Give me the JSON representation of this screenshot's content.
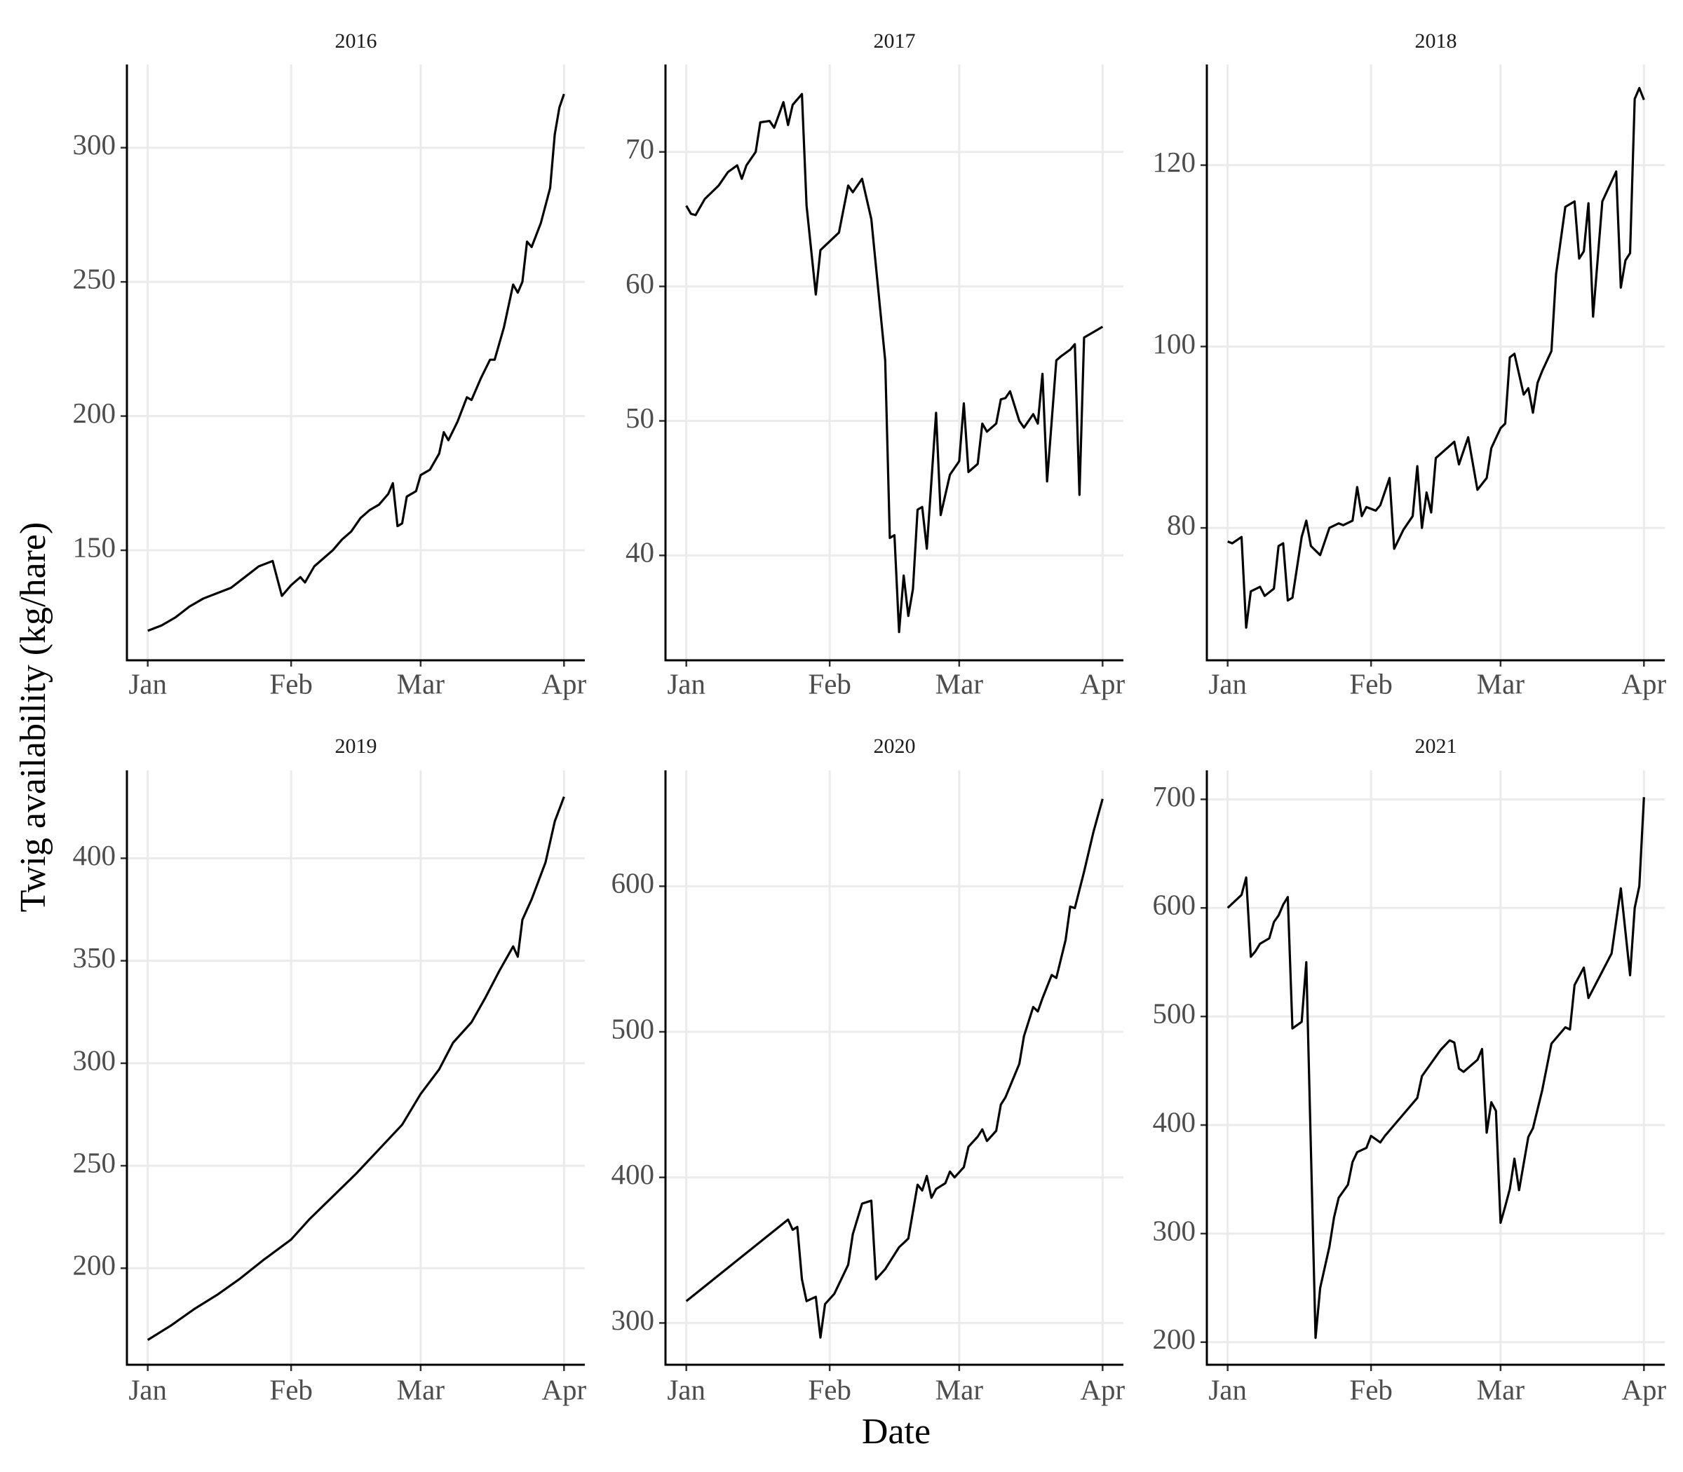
{
  "y_label": "Twig availability (kg/hare)",
  "x_label": "Date",
  "chart_data": [
    {
      "type": "line",
      "title": "2016",
      "x": [
        0,
        3,
        6,
        9,
        12,
        15,
        18,
        21,
        24,
        27,
        29,
        31,
        33,
        34,
        36,
        38,
        40,
        42,
        44,
        46,
        48,
        50,
        52,
        53,
        54,
        55,
        56,
        58,
        59,
        61,
        63,
        64,
        65,
        67,
        69,
        70,
        72,
        74,
        75,
        77,
        79,
        80,
        81,
        82,
        83,
        85,
        87,
        88,
        89,
        90
      ],
      "series": [
        {
          "color": "#000000",
          "values": [
            120,
            122,
            125,
            129,
            132,
            134,
            136,
            140,
            144,
            146,
            133,
            137,
            140,
            138,
            144,
            147,
            150,
            154,
            157,
            162,
            165,
            167,
            171,
            175,
            159,
            160,
            170,
            172,
            178,
            180,
            186,
            194,
            191,
            198,
            207,
            206,
            214,
            221,
            221,
            233,
            249,
            246,
            250,
            265,
            263,
            272,
            285,
            305,
            315,
            320
          ]
        }
      ],
      "xlim": [
        -4.5,
        94.5
      ],
      "xticks": [
        {
          "value": 0,
          "label": "Jan"
        },
        {
          "value": 31,
          "label": "Feb"
        },
        {
          "value": 59,
          "label": "Mar"
        },
        {
          "value": 90,
          "label": "Apr"
        }
      ],
      "ylim": [
        109,
        331
      ],
      "yticks": [
        150,
        200,
        250,
        300
      ],
      "grid": true
    },
    {
      "type": "line",
      "title": "2017",
      "x": [
        0,
        1,
        2,
        4,
        7,
        9,
        11,
        12,
        13,
        15,
        16,
        18,
        19,
        21,
        22,
        23,
        25,
        26,
        28,
        29,
        33,
        35,
        36,
        38,
        40,
        42,
        43,
        44,
        45,
        46,
        47,
        48,
        49,
        50,
        51,
        52,
        54,
        55,
        57,
        59,
        60,
        61,
        63,
        64,
        65,
        67,
        68,
        69,
        70,
        72,
        73,
        75,
        76,
        77,
        78,
        80,
        81,
        83,
        84,
        85,
        86,
        88,
        90
      ],
      "series": [
        {
          "color": "#000000",
          "values": [
            66,
            65.4,
            65.3,
            66.5,
            67.5,
            68.5,
            69,
            68,
            69,
            70,
            72.2,
            72.3,
            71.8,
            73.7,
            72,
            73.5,
            74.3,
            66,
            59.4,
            62.7,
            64,
            67.5,
            67,
            68,
            65,
            58,
            54.5,
            41.3,
            41.5,
            34.3,
            38.5,
            35.5,
            37.5,
            43.4,
            43.6,
            40.5,
            50.6,
            43,
            46,
            47,
            51.3,
            46.2,
            46.8,
            49.8,
            49.2,
            49.8,
            51.6,
            51.7,
            52.2,
            50,
            49.5,
            50.5,
            49.8,
            53.5,
            45.5,
            54.5,
            54.8,
            55.3,
            55.7,
            44.5,
            56.2,
            56.6,
            57
          ]
        }
      ],
      "xlim": [
        -4.5,
        94.5
      ],
      "xticks": [
        {
          "value": 0,
          "label": "Jan"
        },
        {
          "value": 31,
          "label": "Feb"
        },
        {
          "value": 59,
          "label": "Mar"
        },
        {
          "value": 90,
          "label": "Apr"
        }
      ],
      "ylim": [
        32.2,
        76.5
      ],
      "yticks": [
        40,
        50,
        60,
        70
      ],
      "grid": true
    },
    {
      "type": "line",
      "title": "2018",
      "x": [
        0,
        1,
        3,
        4,
        5,
        7,
        8,
        10,
        11,
        12,
        13,
        14,
        16,
        17,
        18,
        20,
        22,
        24,
        25,
        27,
        28,
        29,
        30,
        32,
        33,
        35,
        36,
        38,
        40,
        41,
        42,
        43,
        44,
        45,
        49,
        50,
        52,
        54,
        56,
        57,
        59,
        60,
        61,
        62,
        64,
        65,
        66,
        67,
        68,
        70,
        71,
        73,
        75,
        76,
        77,
        78,
        79,
        81,
        84,
        85,
        86,
        87,
        88,
        89,
        90
      ],
      "series": [
        {
          "color": "#000000",
          "values": [
            78.5,
            78.3,
            79,
            69,
            73,
            73.5,
            72.5,
            73.3,
            78,
            78.3,
            72,
            72.3,
            79,
            80.8,
            78,
            77,
            80,
            80.5,
            80.3,
            80.8,
            84.5,
            81.3,
            82.3,
            81.9,
            82.5,
            85.5,
            77.7,
            79.8,
            81.3,
            86.8,
            80,
            83.9,
            81.7,
            87.7,
            89.5,
            87,
            90,
            84.2,
            85.5,
            88.8,
            91,
            91.5,
            98.8,
            99.2,
            94.7,
            95.4,
            92.7,
            96,
            97.3,
            99.5,
            108,
            115.4,
            116,
            109.7,
            110.5,
            115.8,
            103.3,
            116,
            119.3,
            106.5,
            109.5,
            110.3,
            127.3,
            128.5,
            127.2
          ]
        }
      ],
      "xlim": [
        -4.5,
        94.5
      ],
      "xticks": [
        {
          "value": 0,
          "label": "Jan"
        },
        {
          "value": 31,
          "label": "Feb"
        },
        {
          "value": 59,
          "label": "Mar"
        },
        {
          "value": 90,
          "label": "Apr"
        }
      ],
      "ylim": [
        65.4,
        131.1
      ],
      "yticks": [
        80,
        100,
        120
      ],
      "grid": true
    },
    {
      "type": "line",
      "title": "2019",
      "x": [
        0,
        5,
        10,
        15,
        20,
        25,
        31,
        35,
        40,
        45,
        50,
        55,
        59,
        63,
        66,
        70,
        73,
        76,
        79,
        80,
        81,
        83,
        86,
        88,
        90
      ],
      "series": [
        {
          "color": "#000000",
          "values": [
            165,
            172,
            180,
            187,
            195,
            204,
            214,
            224,
            235,
            246,
            258,
            270,
            285,
            297,
            310,
            320,
            332,
            345,
            357,
            352,
            370,
            380,
            398,
            418,
            430
          ]
        }
      ],
      "xlim": [
        -4.5,
        94.5
      ],
      "xticks": [
        {
          "value": 0,
          "label": "Jan"
        },
        {
          "value": 31,
          "label": "Feb"
        },
        {
          "value": 59,
          "label": "Mar"
        },
        {
          "value": 90,
          "label": "Apr"
        }
      ],
      "ylim": [
        152.9,
        442.9
      ],
      "yticks": [
        200,
        250,
        300,
        350,
        400
      ],
      "grid": true
    },
    {
      "type": "line",
      "title": "2020",
      "x": [
        0,
        22,
        23,
        24,
        25,
        26,
        28,
        29,
        30,
        32,
        35,
        36,
        38,
        40,
        41,
        43,
        45,
        46,
        48,
        50,
        51,
        52,
        53,
        54,
        56,
        57,
        58,
        60,
        61,
        63,
        64,
        65,
        67,
        68,
        69,
        72,
        73,
        75,
        76,
        77,
        79,
        80,
        82,
        83,
        84,
        86,
        88,
        90
      ],
      "series": [
        {
          "color": "#000000",
          "values": [
            315,
            371,
            364,
            366,
            330,
            315,
            318,
            290,
            313,
            320,
            340,
            361,
            382,
            384,
            330,
            337,
            347,
            352,
            358,
            395,
            391,
            401,
            386,
            392,
            396,
            404,
            400,
            407,
            421,
            428,
            433,
            425,
            432,
            450,
            455,
            478,
            497,
            517,
            514,
            523,
            539,
            537,
            563,
            586,
            585,
            610,
            637,
            660
          ]
        }
      ],
      "xlim": [
        -4.5,
        94.5
      ],
      "xticks": [
        {
          "value": 0,
          "label": "Jan"
        },
        {
          "value": 31,
          "label": "Feb"
        },
        {
          "value": 59,
          "label": "Mar"
        },
        {
          "value": 90,
          "label": "Apr"
        }
      ],
      "ylim": [
        271.3,
        679.6
      ],
      "yticks": [
        300,
        400,
        500,
        600
      ],
      "grid": true
    },
    {
      "type": "line",
      "title": "2021",
      "x": [
        0,
        3,
        4,
        5,
        6,
        7,
        9,
        10,
        11,
        12,
        13,
        14,
        16,
        17,
        19,
        20,
        22,
        23,
        24,
        26,
        27,
        28,
        30,
        31,
        33,
        34,
        36,
        41,
        42,
        46,
        48,
        49,
        50,
        51,
        54,
        55,
        56,
        57,
        58,
        59,
        60,
        61,
        62,
        63,
        65,
        66,
        68,
        70,
        73,
        74,
        75,
        77,
        78,
        83,
        85,
        87,
        88,
        89,
        90
      ],
      "series": [
        {
          "color": "#000000",
          "values": [
            600,
            612,
            628,
            555,
            560,
            567,
            572,
            587,
            593,
            603,
            610,
            489,
            495,
            550,
            204,
            250,
            288,
            315,
            333,
            345,
            366,
            375,
            379,
            390,
            384,
            390,
            400,
            425,
            445,
            469,
            478,
            476,
            452,
            449,
            460,
            470,
            393,
            421,
            413,
            310,
            325,
            341,
            369,
            340,
            389,
            397,
            432,
            475,
            490,
            488,
            529,
            545,
            517,
            558,
            618,
            538,
            600,
            620,
            702
          ]
        }
      ],
      "xlim": [
        -4.5,
        94.5
      ],
      "xticks": [
        {
          "value": 0,
          "label": "Jan"
        },
        {
          "value": 31,
          "label": "Feb"
        },
        {
          "value": 59,
          "label": "Mar"
        },
        {
          "value": 90,
          "label": "Apr"
        }
      ],
      "ylim": [
        179.2,
        726.7
      ],
      "yticks": [
        200,
        300,
        400,
        500,
        600,
        700
      ],
      "grid": true
    }
  ]
}
